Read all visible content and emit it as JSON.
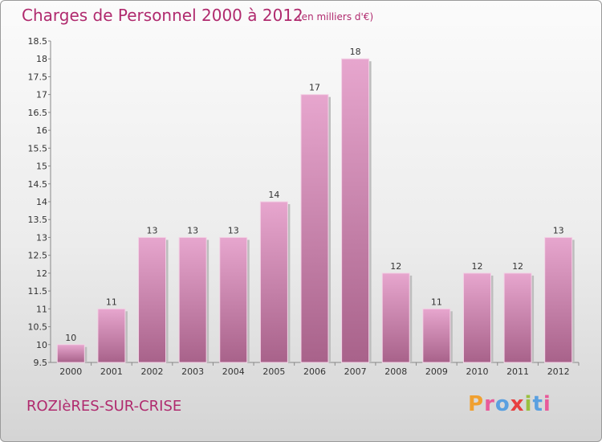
{
  "header": {
    "title": "Charges de Personnel 2000 à 2012",
    "subtitle": "(en milliers d'€)"
  },
  "footer": {
    "location": "ROZIèRES-SUR-CRISE",
    "brand": "Proxiti"
  },
  "colors": {
    "title": "#b02a6e",
    "bar_light": "#e7a6ce",
    "bar_dark": "#a8628a",
    "brand_letters": [
      "#f0a030",
      "#e85a9a",
      "#5aa0e0",
      "#e84040",
      "#9ac040",
      "#5aa0e0",
      "#e85a9a"
    ]
  },
  "chart_data": {
    "type": "bar",
    "categories": [
      "2000",
      "2001",
      "2002",
      "2003",
      "2004",
      "2005",
      "2006",
      "2007",
      "2008",
      "2009",
      "2010",
      "2011",
      "2012"
    ],
    "values": [
      10,
      11,
      13,
      13,
      13,
      14,
      17,
      18,
      12,
      11,
      12,
      12,
      13
    ],
    "y_ticks": [
      "9.5",
      "10",
      "10.5",
      "11",
      "11.5",
      "12",
      "12.5",
      "13",
      "13.5",
      "14",
      "14.5",
      "15",
      "15.5",
      "16",
      "16.5",
      "17",
      "17.5",
      "18",
      "18.5"
    ],
    "ylim": [
      9.5,
      18.5
    ],
    "grid": false,
    "legend": "none"
  }
}
